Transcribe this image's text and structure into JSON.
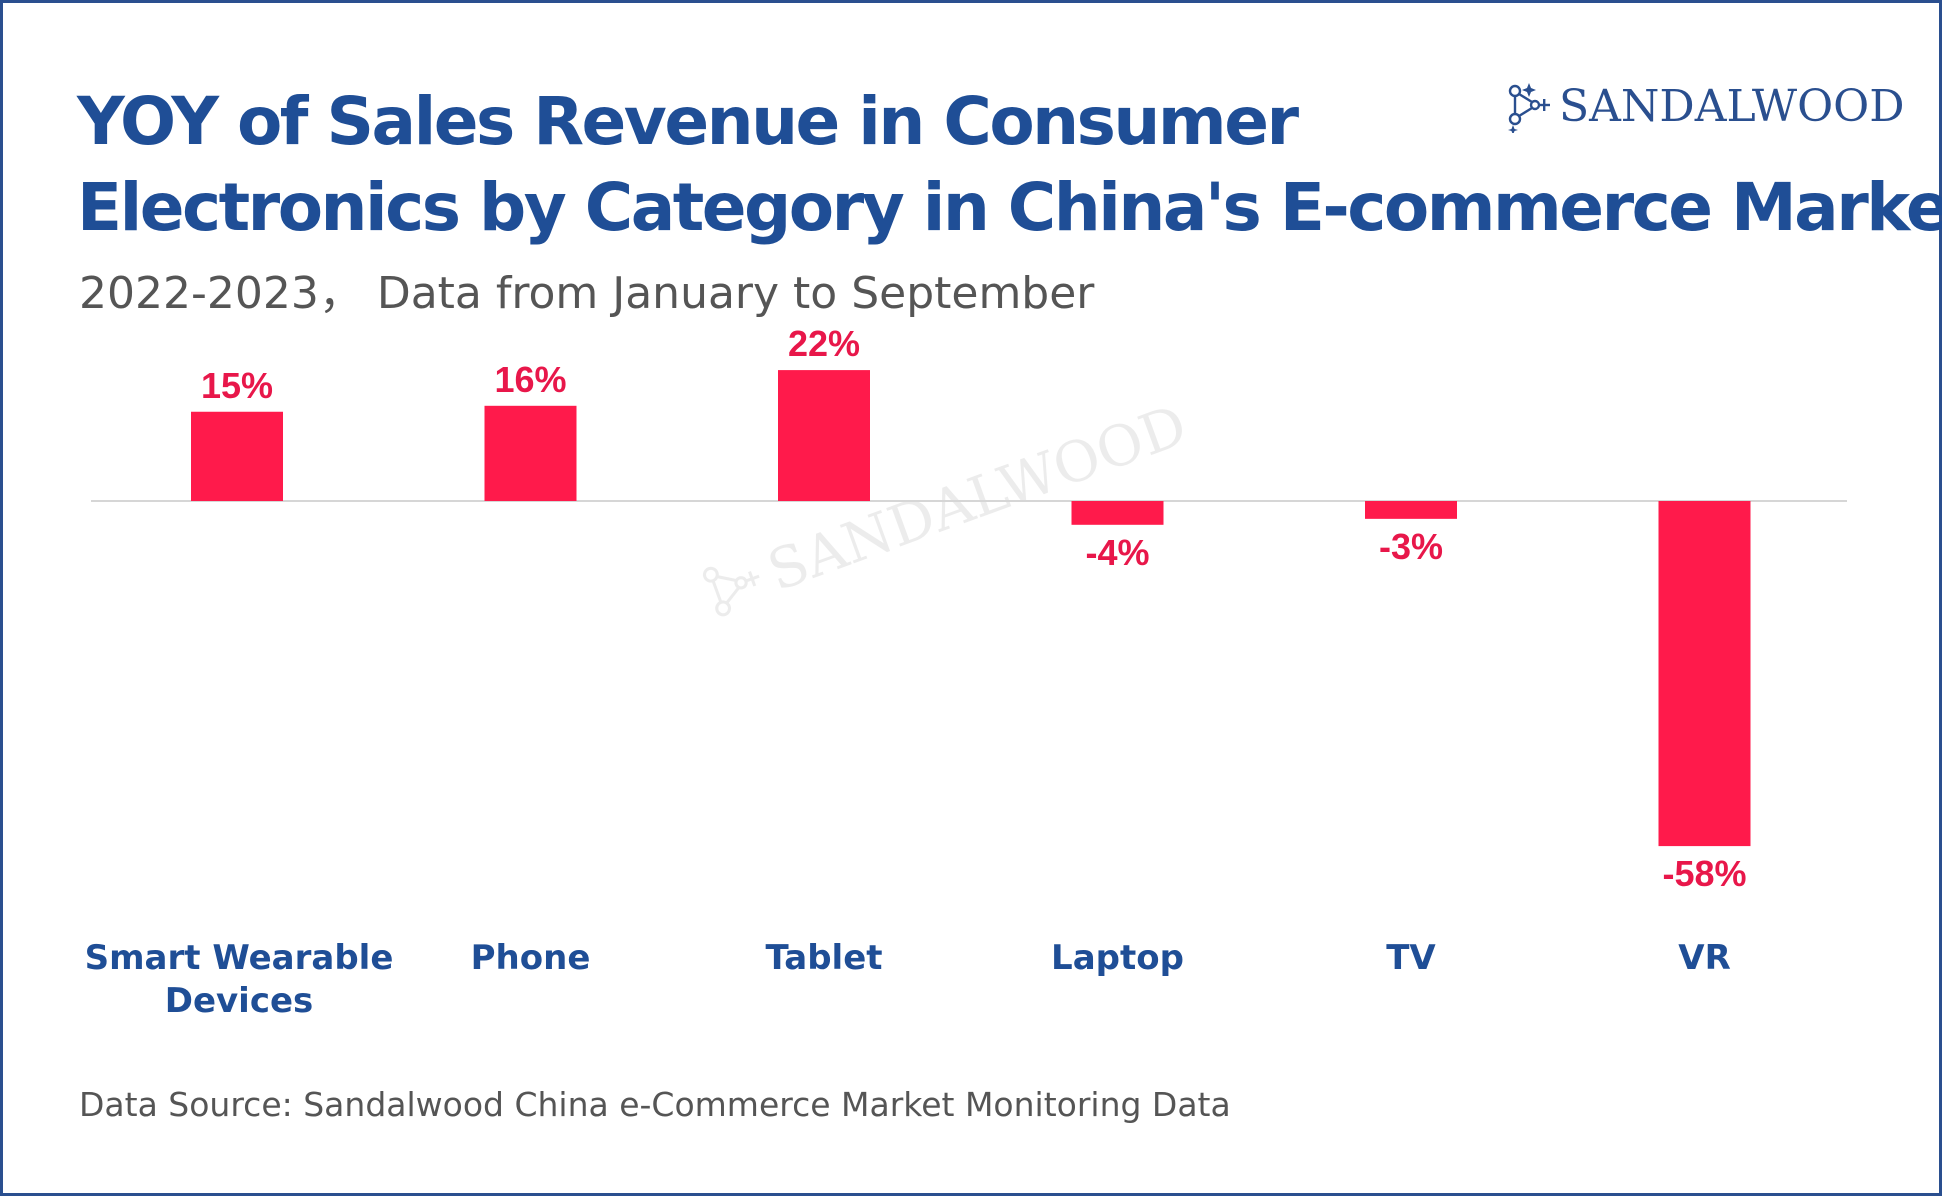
{
  "title_line1": "YOY of Sales Revenue in Consumer",
  "title_line2": "Electronics by Category in China's E-commerce Market",
  "subtitle": "2022-2023， Data from January to September",
  "brand": "SANDALWOOD",
  "source": "Data Source: Sandalwood China e-Commerce Market Monitoring Data",
  "colors": {
    "bar": "#ff1a4b",
    "title": "#1f4e96",
    "label": "#e8174a"
  },
  "chart_data": {
    "type": "bar",
    "categories": [
      [
        "Smart Wearable",
        "Devices"
      ],
      [
        "Phone"
      ],
      [
        "Tablet"
      ],
      [
        "Laptop"
      ],
      [
        "TV"
      ],
      [
        "VR"
      ]
    ],
    "values": [
      15,
      16,
      22,
      -4,
      -3,
      -58
    ],
    "value_labels": [
      "15%",
      "16%",
      "22%",
      "-4%",
      "-3%",
      "-58%"
    ],
    "unit": "%",
    "title": "YOY of Sales Revenue in Consumer Electronics by Category in China's E-commerce Market",
    "xlabel": "",
    "ylabel": "",
    "grid": false,
    "legend": "none"
  }
}
